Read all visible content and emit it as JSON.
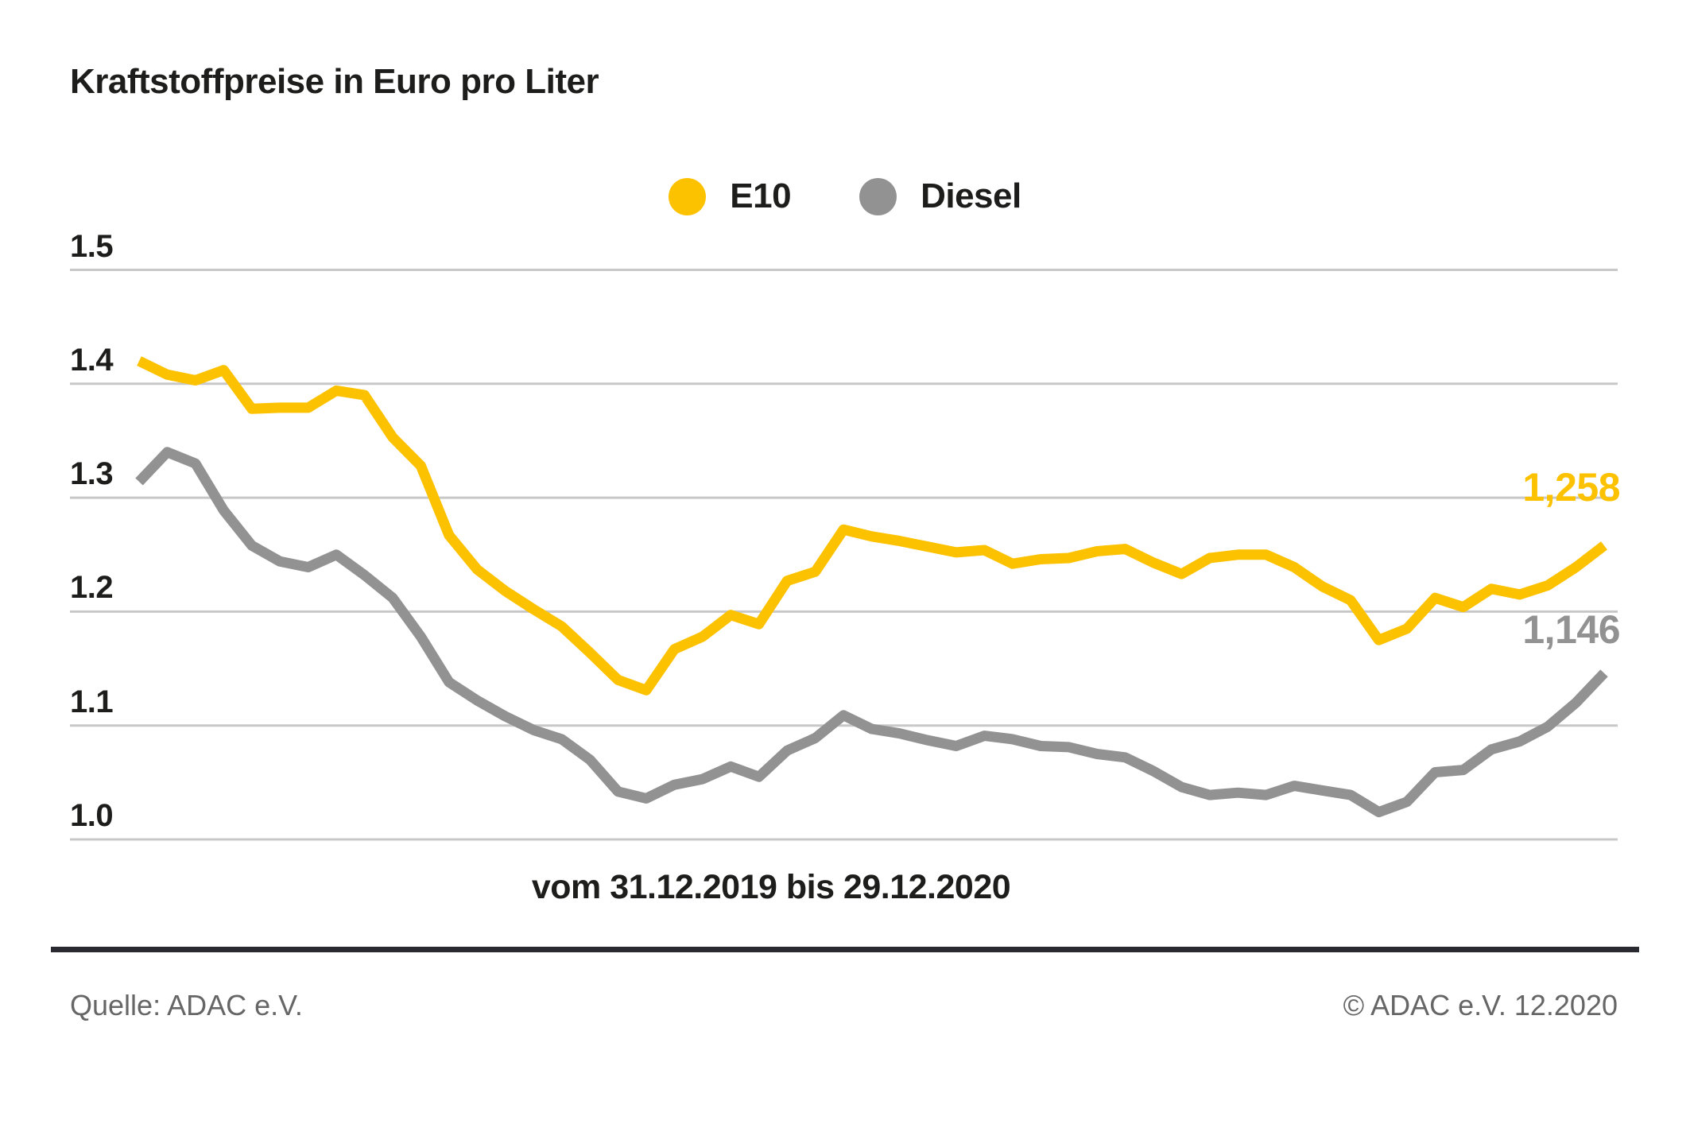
{
  "page": {
    "title": "Kraftstoffpreise in Euro pro Liter",
    "x_axis_label": "vom 31.12.2019 bis 29.12.2020",
    "source_left": "Quelle: ADAC e.V.",
    "source_right": "© ADAC e.V. 12.2020"
  },
  "colors": {
    "e10": "#FCC200",
    "diesel": "#929292",
    "gridline": "#C8C8C8",
    "text_dark": "#1D1D1B",
    "text_gray": "#666666",
    "divider": "#292930"
  },
  "chart_data": {
    "type": "line",
    "title": "Kraftstoffpreise in Euro pro Liter",
    "xlabel": "vom 31.12.2019 bis 29.12.2020",
    "ylabel": "Euro pro Liter",
    "x_start": "31.12.2019",
    "x_end": "29.12.2020",
    "x_interval": "weekly",
    "ylim": [
      1.0,
      1.5
    ],
    "grid": true,
    "legend_position": "top-center",
    "y_ticks": [
      {
        "label": "1.5",
        "value": 1.5
      },
      {
        "label": "1.4",
        "value": 1.4
      },
      {
        "label": "1.3",
        "value": 1.3
      },
      {
        "label": "1.2",
        "value": 1.2
      },
      {
        "label": "1.1",
        "value": 1.1
      },
      {
        "label": "1.0",
        "value": 1.0
      }
    ],
    "series": [
      {
        "name": "E10",
        "color": "#FCC200",
        "end_label": "1,258",
        "final_value": 1.258,
        "values": [
          1.42,
          1.408,
          1.403,
          1.412,
          1.378,
          1.379,
          1.379,
          1.394,
          1.39,
          1.353,
          1.328,
          1.267,
          1.237,
          1.218,
          1.202,
          1.187,
          1.164,
          1.14,
          1.131,
          1.167,
          1.178,
          1.197,
          1.189,
          1.227,
          1.235,
          1.272,
          1.266,
          1.262,
          1.257,
          1.252,
          1.254,
          1.242,
          1.246,
          1.247,
          1.253,
          1.255,
          1.243,
          1.233,
          1.247,
          1.25,
          1.25,
          1.239,
          1.222,
          1.21,
          1.175,
          1.185,
          1.212,
          1.204,
          1.22,
          1.215,
          1.223,
          1.239,
          1.258
        ]
      },
      {
        "name": "Diesel",
        "color": "#929292",
        "end_label": "1,146",
        "final_value": 1.146,
        "values": [
          1.314,
          1.34,
          1.33,
          1.289,
          1.258,
          1.244,
          1.239,
          1.25,
          1.232,
          1.212,
          1.178,
          1.138,
          1.122,
          1.108,
          1.096,
          1.088,
          1.07,
          1.042,
          1.036,
          1.048,
          1.053,
          1.064,
          1.055,
          1.078,
          1.089,
          1.109,
          1.097,
          1.093,
          1.087,
          1.082,
          1.091,
          1.088,
          1.082,
          1.081,
          1.075,
          1.072,
          1.06,
          1.046,
          1.039,
          1.041,
          1.039,
          1.047,
          1.043,
          1.039,
          1.024,
          1.033,
          1.059,
          1.061,
          1.079,
          1.086,
          1.099,
          1.12,
          1.146
        ]
      }
    ]
  }
}
